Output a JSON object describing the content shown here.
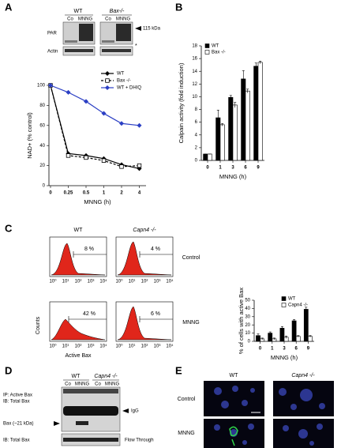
{
  "panel_labels": [
    "A",
    "B",
    "C",
    "D",
    "E"
  ],
  "blot_a": {
    "genotypes": [
      "WT",
      "Bax-/-"
    ],
    "lanes": [
      "Co",
      "MNNG",
      "Co",
      "MNNG"
    ],
    "rows": [
      "PAR",
      "Actin"
    ],
    "marker": "115 kDa",
    "asterisk": "*"
  },
  "flow_c": {
    "columns": [
      "WT",
      "Capn4 -/-"
    ],
    "rows": [
      "Control",
      "MNNG"
    ],
    "gates": [
      "8 %",
      "4 %",
      "42 %",
      "6 %"
    ],
    "axis_ticks": [
      "10⁰",
      "10¹",
      "10²",
      "10³",
      "10⁴"
    ],
    "y_label": "Counts",
    "x_label": "Active Bax"
  },
  "blot_d": {
    "genotypes": [
      "WT",
      "Capn4 -/-"
    ],
    "lanes": [
      "Co",
      "MNNG",
      "Co",
      "MNNG"
    ],
    "ip_label": "IP: Active Bax",
    "ib_label": "IB: Total Bax",
    "igg": "IgG",
    "bax": "Bax (~21 kDa)",
    "bottom_label": "IB: Total Bax",
    "flow_through": "Flow Through"
  },
  "micro_e": {
    "columns": [
      "WT",
      "Capn4 -/-"
    ],
    "rows": [
      "Control",
      "MNNG"
    ]
  },
  "chart_data": [
    {
      "type": "line",
      "x_label": "MNNG (h)",
      "y_label": "NAD+ (% control)",
      "categories": [
        "0",
        "0.25",
        "0.5",
        "1",
        "2",
        "4"
      ],
      "series": [
        {
          "name": "WT",
          "color": "#000000",
          "marker": "diamond",
          "dashed": false,
          "values": [
            100,
            32,
            30,
            27,
            21,
            17
          ]
        },
        {
          "name": "Bax -/-",
          "color": "#000000",
          "marker": "square-open",
          "dashed": true,
          "values": [
            100,
            30,
            28,
            25,
            19,
            20
          ]
        },
        {
          "name": "WT + DHIQ",
          "color": "#2b3fc4",
          "marker": "diamond",
          "dashed": false,
          "values": [
            100,
            93,
            84,
            72,
            62,
            60
          ]
        }
      ],
      "ylim": [
        0,
        100
      ],
      "yticks": [
        0,
        20,
        40,
        60,
        80,
        100
      ]
    },
    {
      "type": "bar",
      "x_label": "MNNG (h)",
      "y_label": "Calpain activity (fold induction)",
      "categories": [
        "0",
        "1",
        "3",
        "6",
        "9"
      ],
      "series": [
        {
          "name": "WT",
          "color": "#000000",
          "values": [
            1,
            6.7,
            9.9,
            12.8,
            14.8
          ],
          "errors": [
            0,
            1.2,
            0.3,
            1.3,
            0.5
          ]
        },
        {
          "name": "Bax -/-",
          "color": "#ffffff",
          "values": [
            1,
            5.6,
            8.7,
            10.9,
            15.4
          ],
          "errors": [
            0,
            0.2,
            0.4,
            0.3,
            0.2
          ]
        }
      ],
      "ylim": [
        0,
        18
      ],
      "yticks": [
        0,
        2,
        4,
        6,
        8,
        10,
        12,
        14,
        16,
        18
      ]
    },
    {
      "type": "bar",
      "x_label": "MNNG (h)",
      "y_label": "% of cells with active Bax",
      "categories": [
        "0",
        "1",
        "3",
        "6",
        "9"
      ],
      "series": [
        {
          "name": "WT",
          "color": "#000000",
          "values": [
            7,
            10,
            16,
            25,
            39
          ],
          "errors": [
            2,
            1.5,
            2,
            1.5,
            2.5
          ]
        },
        {
          "name": "Capn4 -/-",
          "color": "#ffffff",
          "values": [
            3,
            3,
            5,
            6,
            6
          ],
          "errors": [
            1,
            1,
            1.5,
            1,
            1
          ]
        }
      ],
      "ylim": [
        0,
        50
      ],
      "yticks": [
        0,
        10,
        20,
        30,
        40,
        50
      ]
    }
  ]
}
